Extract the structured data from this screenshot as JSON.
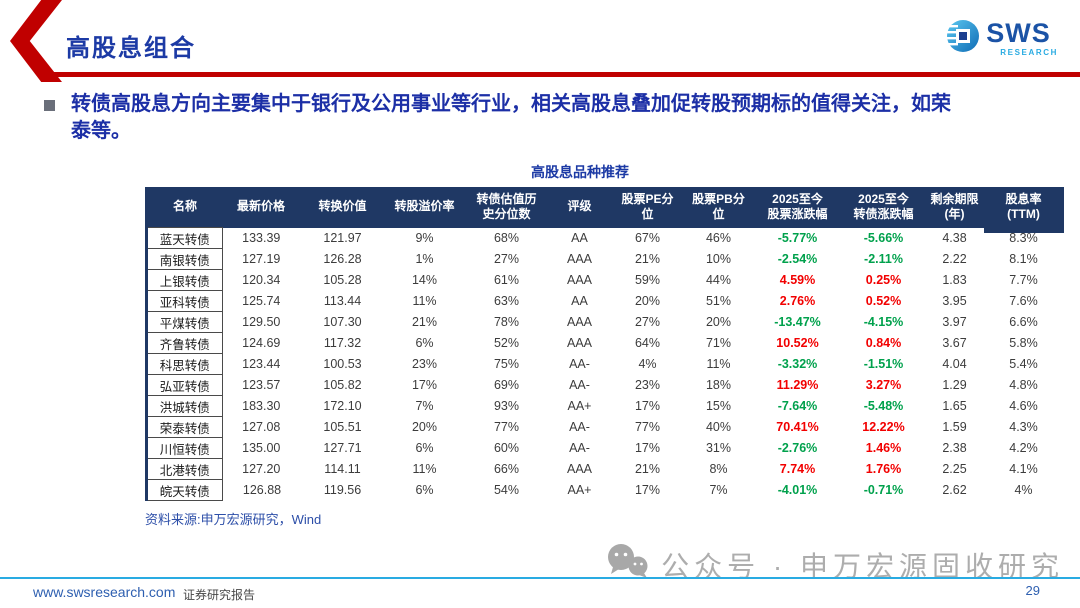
{
  "header": {
    "title": "高股息组合",
    "logo": {
      "name": "SWS",
      "sub": "RESEARCH"
    }
  },
  "bullet": {
    "text": "转债高股息方向主要集中于银行及公用事业等行业，相关高股息叠加促转股预期标的值得关注，如荣泰等。"
  },
  "table": {
    "title": "高股息品种推荐",
    "columns": [
      "名称",
      "最新价格",
      "转换价值",
      "转股溢价率",
      "转债估值历\n史分位数",
      "评级",
      "股票PE分\n位",
      "股票PB分\n位",
      "2025至今\n股票涨跌幅",
      "2025至今\n转债涨跌幅",
      "剩余期限\n(年)",
      "股息率\n(TTM)"
    ],
    "rows": [
      [
        "蓝天转债",
        "133.39",
        "121.97",
        "9%",
        "68%",
        "AA",
        "67%",
        "46%",
        "-5.77%",
        "-5.66%",
        "4.38",
        "8.3%"
      ],
      [
        "南银转债",
        "127.19",
        "126.28",
        "1%",
        "27%",
        "AAA",
        "21%",
        "10%",
        "-2.54%",
        "-2.11%",
        "2.22",
        "8.1%"
      ],
      [
        "上银转债",
        "120.34",
        "105.28",
        "14%",
        "61%",
        "AAA",
        "59%",
        "44%",
        "4.59%",
        "0.25%",
        "1.83",
        "7.7%"
      ],
      [
        "亚科转债",
        "125.74",
        "113.44",
        "11%",
        "63%",
        "AA",
        "20%",
        "51%",
        "2.76%",
        "0.52%",
        "3.95",
        "7.6%"
      ],
      [
        "平煤转债",
        "129.50",
        "107.30",
        "21%",
        "78%",
        "AAA",
        "27%",
        "20%",
        "-13.47%",
        "-4.15%",
        "3.97",
        "6.6%"
      ],
      [
        "齐鲁转债",
        "124.69",
        "117.32",
        "6%",
        "52%",
        "AAA",
        "64%",
        "71%",
        "10.52%",
        "0.84%",
        "3.67",
        "5.8%"
      ],
      [
        "科思转债",
        "123.44",
        "100.53",
        "23%",
        "75%",
        "AA-",
        "4%",
        "11%",
        "-3.32%",
        "-1.51%",
        "4.04",
        "5.4%"
      ],
      [
        "弘亚转债",
        "123.57",
        "105.82",
        "17%",
        "69%",
        "AA-",
        "23%",
        "18%",
        "11.29%",
        "3.27%",
        "1.29",
        "4.8%"
      ],
      [
        "洪城转债",
        "183.30",
        "172.10",
        "7%",
        "93%",
        "AA+",
        "17%",
        "15%",
        "-7.64%",
        "-5.48%",
        "1.65",
        "4.6%"
      ],
      [
        "荣泰转债",
        "127.08",
        "105.51",
        "20%",
        "77%",
        "AA-",
        "77%",
        "40%",
        "70.41%",
        "12.22%",
        "1.59",
        "4.3%"
      ],
      [
        "川恒转债",
        "135.00",
        "127.71",
        "6%",
        "60%",
        "AA-",
        "17%",
        "31%",
        "-2.76%",
        "1.46%",
        "2.38",
        "4.2%"
      ],
      [
        "北港转债",
        "127.20",
        "114.11",
        "11%",
        "66%",
        "AAA",
        "21%",
        "8%",
        "7.74%",
        "1.76%",
        "2.25",
        "4.1%"
      ],
      [
        "皖天转债",
        "126.88",
        "119.56",
        "6%",
        "54%",
        "AA+",
        "17%",
        "7%",
        "-4.01%",
        "-0.71%",
        "2.62",
        "4%"
      ]
    ]
  },
  "source": "资料来源:申万宏源研究，Wind",
  "watermark": {
    "text": "公众号 · 申万宏源固收研究"
  },
  "footer": {
    "url": "www.swsresearch.com",
    "label": "证券研究报告",
    "page": "29"
  },
  "colors": {
    "accent_red": "#C00000",
    "header_navy": "#1F3864",
    "title_blue": "#1C3AA5",
    "positive_red": "#F20000",
    "negative_green": "#00A14C",
    "cyan_line": "#29ABE2",
    "watermark_gray": "#ADADAD"
  }
}
